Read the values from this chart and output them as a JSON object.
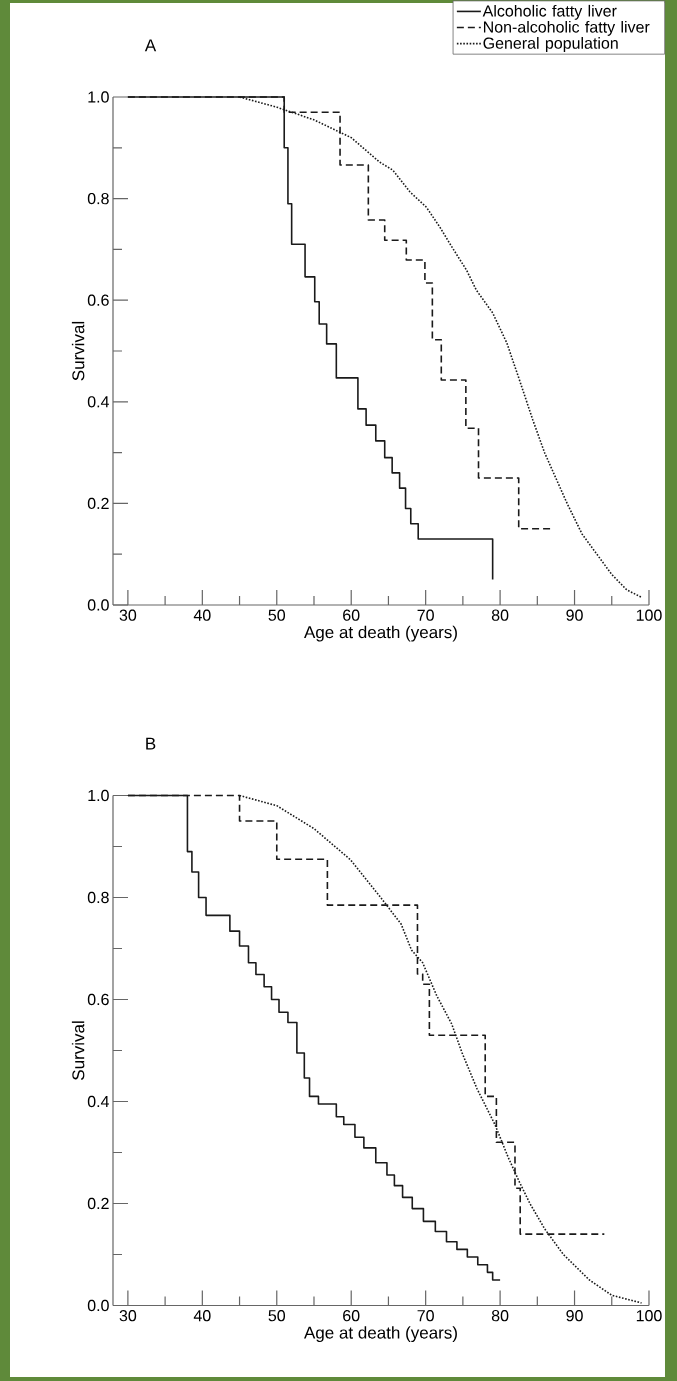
{
  "chart_data": [
    {
      "type": "step",
      "title": "A",
      "xlabel": "Age at death (years)",
      "ylabel": "Survival",
      "legend": "top right",
      "xlim": [
        28,
        100
      ],
      "ylim": [
        0,
        1
      ],
      "xticks": [
        30,
        {
          "value": 35,
          "label": null
        },
        40,
        {
          "value": 45,
          "label": null
        },
        50,
        {
          "value": 55,
          "label": null
        },
        60,
        {
          "value": 65,
          "label": null
        },
        70,
        {
          "value": 75,
          "label": null
        },
        80,
        {
          "value": 85,
          "label": null
        },
        90,
        {
          "value": 95,
          "label": null
        },
        100
      ],
      "yticks": [
        {
          "value": 0,
          "label": "0.0"
        },
        {
          "value": 0.1,
          "label": null
        },
        {
          "value": 0.2,
          "label": "0.2"
        },
        {
          "value": 0.3,
          "label": null
        },
        {
          "value": 0.4,
          "label": "0.4"
        },
        {
          "value": 0.5,
          "label": null
        },
        {
          "value": 0.6,
          "label": "0.6"
        },
        {
          "value": 0.7,
          "label": null
        },
        {
          "value": 0.8,
          "label": "0.8"
        },
        {
          "value": 0.9,
          "label": null
        },
        {
          "value": 1,
          "label": "1.0"
        }
      ],
      "series": [
        {
          "name": "Alcoholic fatty liver",
          "color": "#1a1a1a",
          "line_style": "solid",
          "x": [
            30,
            51,
            51.5,
            52,
            53.8,
            55.1,
            55.7,
            56.7,
            58,
            60.9,
            62,
            63.3,
            64.5,
            65.5,
            66.5,
            67.3,
            68,
            69,
            79
          ],
          "values": [
            1.0,
            0.9,
            0.79,
            0.71,
            0.646,
            0.597,
            0.553,
            0.514,
            0.447,
            0.386,
            0.354,
            0.323,
            0.29,
            0.26,
            0.23,
            0.19,
            0.16,
            0.13,
            0.05
          ]
        },
        {
          "name": "Non-alcoholic fatty liver",
          "color": "#1a1a1a",
          "line_style": "dashed",
          "x": [
            30,
            51,
            58.5,
            62.3,
            64.5,
            67.4,
            69.9,
            70.9,
            72.1,
            75.4,
            77.1,
            82.5,
            87
          ],
          "values": [
            1.0,
            0.97,
            0.866,
            0.758,
            0.718,
            0.679,
            0.634,
            0.522,
            0.443,
            0.348,
            0.25,
            0.15,
            0.15
          ]
        },
        {
          "name": "General population",
          "color": "#1a1a1a",
          "line_style": "dotted",
          "type": "line",
          "x": [
            45,
            50,
            55,
            60,
            63.8,
            65.6,
            67.9,
            70.1,
            71.9,
            73.6,
            75.5,
            76.8,
            79,
            80.9,
            82.6,
            84.4,
            86,
            89,
            91,
            93,
            95,
            97,
            99
          ],
          "values": [
            1.0,
            0.98,
            0.955,
            0.92,
            0.872,
            0.856,
            0.813,
            0.783,
            0.744,
            0.703,
            0.659,
            0.62,
            0.575,
            0.516,
            0.443,
            0.364,
            0.299,
            0.2,
            0.14,
            0.1,
            0.06,
            0.03,
            0.015
          ]
        }
      ]
    },
    {
      "type": "step",
      "title": "B",
      "xlabel": "Age at death (years)",
      "ylabel": "Survival",
      "xlim": [
        28,
        100
      ],
      "ylim": [
        0,
        1
      ],
      "xticks": [
        30,
        {
          "value": 35,
          "label": null
        },
        40,
        {
          "value": 45,
          "label": null
        },
        50,
        {
          "value": 55,
          "label": null
        },
        60,
        {
          "value": 65,
          "label": null
        },
        70,
        {
          "value": 75,
          "label": null
        },
        80,
        {
          "value": 85,
          "label": null
        },
        90,
        {
          "value": 95,
          "label": null
        },
        100
      ],
      "yticks": [
        {
          "value": 0,
          "label": "0.0"
        },
        {
          "value": 0.1,
          "label": null
        },
        {
          "value": 0.2,
          "label": "0.2"
        },
        {
          "value": 0.3,
          "label": null
        },
        {
          "value": 0.4,
          "label": "0.4"
        },
        {
          "value": 0.5,
          "label": null
        },
        {
          "value": 0.6,
          "label": "0.6"
        },
        {
          "value": 0.7,
          "label": null
        },
        {
          "value": 0.8,
          "label": "0.8"
        },
        {
          "value": 0.9,
          "label": null
        },
        {
          "value": 1,
          "label": "1.0"
        }
      ],
      "series": [
        {
          "color": "#1a1a1a",
          "line_style": "solid",
          "x": [
            30,
            38,
            38.6,
            39.5,
            40.5,
            43.7,
            45,
            46.2,
            47.2,
            48.3,
            49.3,
            50.3,
            51.5,
            52.7,
            53.7,
            54.4,
            55.6,
            58,
            59,
            60.5,
            61.7,
            63.3,
            64.8,
            65.8,
            66.9,
            68.2,
            69.7,
            71.3,
            72.8,
            74.2,
            75.6,
            77,
            78.3,
            79,
            80
          ],
          "values": [
            1.0,
            0.89,
            0.85,
            0.8,
            0.765,
            0.734,
            0.705,
            0.672,
            0.649,
            0.625,
            0.6,
            0.575,
            0.555,
            0.495,
            0.446,
            0.41,
            0.395,
            0.37,
            0.355,
            0.33,
            0.309,
            0.28,
            0.256,
            0.235,
            0.212,
            0.19,
            0.165,
            0.145,
            0.125,
            0.11,
            0.095,
            0.08,
            0.065,
            0.05,
            0.05
          ]
        },
        {
          "color": "#1a1a1a",
          "line_style": "dashed",
          "x": [
            30,
            45,
            50,
            56.8,
            68.9,
            69.6,
            70.5,
            78,
            79.5,
            82,
            82.7,
            94
          ],
          "values": [
            1.0,
            0.95,
            0.875,
            0.785,
            0.65,
            0.63,
            0.53,
            0.41,
            0.32,
            0.23,
            0.14,
            0.14
          ]
        },
        {
          "color": "#1a1a1a",
          "line_style": "dotted",
          "type": "line",
          "x": [
            45,
            50,
            55,
            59.9,
            63.8,
            66.7,
            68.1,
            69.6,
            71.5,
            73.5,
            74.9,
            76.9,
            79.3,
            81.1,
            82.6,
            84,
            86,
            88.5,
            92,
            95,
            99
          ],
          "values": [
            1.0,
            0.98,
            0.935,
            0.874,
            0.803,
            0.748,
            0.697,
            0.672,
            0.607,
            0.552,
            0.495,
            0.425,
            0.355,
            0.29,
            0.242,
            0.2,
            0.15,
            0.1,
            0.05,
            0.02,
            0.005
          ]
        }
      ]
    }
  ]
}
